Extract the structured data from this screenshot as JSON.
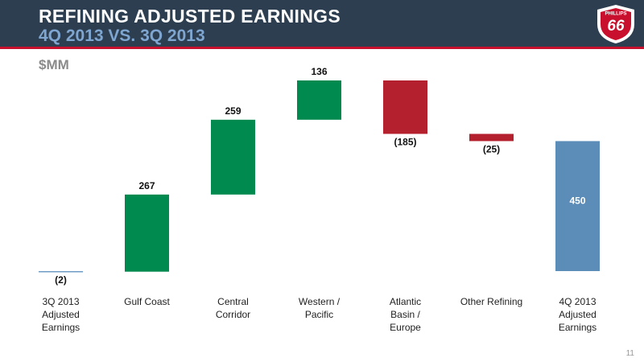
{
  "header": {
    "title": "REFINING ADJUSTED EARNINGS",
    "subtitle": "4Q 2013 VS. 3Q 2013",
    "logo_top": "PHILLIPS",
    "logo_main": "66"
  },
  "page_number": "11",
  "chart_data": {
    "type": "waterfall",
    "unit_label": "$MM",
    "categories": [
      "3Q 2013 Adjusted Earnings",
      "Gulf Coast",
      "Central Corridor",
      "Western / Pacific",
      "Atlantic Basin / Europe",
      "Other Refining",
      "4Q 2013 Adjusted Earnings"
    ],
    "values": [
      -2,
      267,
      259,
      136,
      -185,
      -25,
      450
    ],
    "value_labels": [
      "(2)",
      "267",
      "259",
      "136",
      "(185)",
      "(25)",
      "450"
    ],
    "measures": [
      "relative",
      "relative",
      "relative",
      "relative",
      "relative",
      "relative",
      "total"
    ],
    "colors": [
      "#6f9cc6",
      "#008a4f",
      "#008a4f",
      "#008a4f",
      "#b5202e",
      "#b5202e",
      "#5b8db8"
    ]
  }
}
